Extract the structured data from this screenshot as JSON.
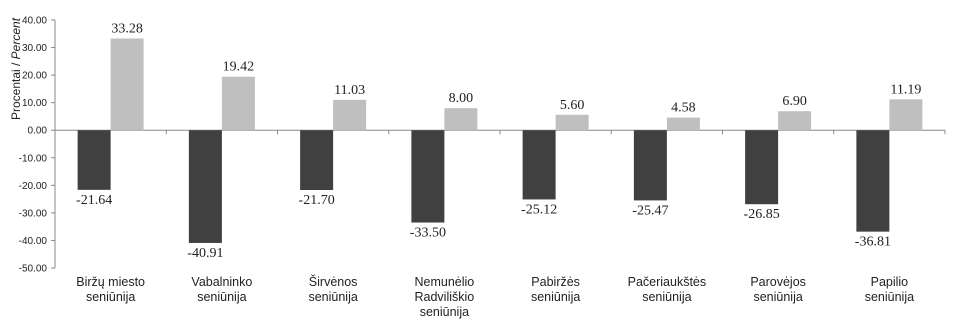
{
  "chart_data": {
    "type": "bar",
    "ylabel_main": "Procentai / ",
    "ylabel_italic": "Percent",
    "ylim": [
      -50,
      40
    ],
    "yticks": [
      "40.00",
      "30.00",
      "20.00",
      "10.00",
      "0.00",
      "-10.00",
      "-20.00",
      "-30.00",
      "-40.00",
      "-50.00"
    ],
    "ytick_values": [
      40,
      30,
      20,
      10,
      0,
      -10,
      -20,
      -30,
      -40,
      -50
    ],
    "categories": [
      [
        "Biržų miesto",
        "seniūnija"
      ],
      [
        "Vabalninko",
        "seniūnija"
      ],
      [
        "Širvėnos",
        "seniūnija"
      ],
      [
        "Nemunėlio",
        "Radviliškio",
        "seniūnija"
      ],
      [
        "Pabiržės",
        "seniūnija"
      ],
      [
        "Pačeriaukštės",
        "seniūnija"
      ],
      [
        "Parovėjos",
        "seniūnija"
      ],
      [
        "Papilio",
        "seniūnija"
      ]
    ],
    "series": [
      {
        "values": [
          -21.64,
          -40.91,
          -21.7,
          -33.5,
          -25.12,
          -25.47,
          -26.85,
          -36.81
        ],
        "labels": [
          "-21.64",
          "-40.91",
          "-21.70",
          "-33.50",
          "-25.12",
          "-25.47",
          "-26.85",
          "-36.81"
        ],
        "color": "#404040"
      },
      {
        "values": [
          33.28,
          19.42,
          11.03,
          8.0,
          5.6,
          4.58,
          6.9,
          11.19
        ],
        "labels": [
          "33.28",
          "19.42",
          "11.03",
          "8.00",
          "5.60",
          "4.58",
          "6.90",
          "11.19"
        ],
        "color": "#bfbfbf"
      }
    ],
    "axis_color": "#888888",
    "grid": false,
    "legend": "none"
  }
}
